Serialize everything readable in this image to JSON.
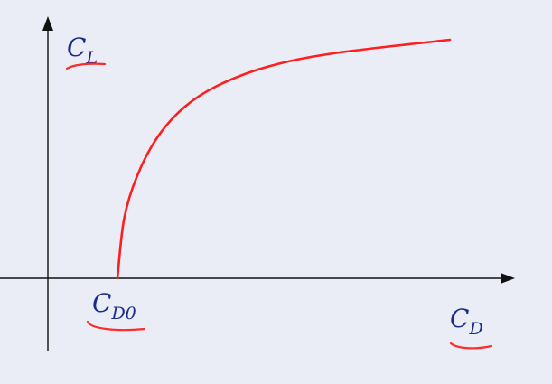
{
  "chart_data": {
    "type": "line",
    "title": "",
    "xlabel": {
      "main": "C",
      "sub": "D"
    },
    "ylabel": {
      "main": "C",
      "sub": "L"
    },
    "x_marker": {
      "main": "C",
      "sub": "D0"
    },
    "curve": {
      "name": "",
      "description_points": [
        [
          0.0,
          0.0
        ],
        [
          0.02,
          0.22
        ],
        [
          0.06,
          0.38
        ],
        [
          0.12,
          0.52
        ],
        [
          0.2,
          0.63
        ],
        [
          0.3,
          0.71
        ],
        [
          0.45,
          0.78
        ],
        [
          0.65,
          0.83
        ],
        [
          1.0,
          0.88
        ]
      ]
    },
    "grid": false,
    "colors": {
      "curve": "#ff1e1e",
      "axes": "#111111",
      "labels": "#1a2a8a",
      "underline": "#ff2a2a"
    }
  }
}
